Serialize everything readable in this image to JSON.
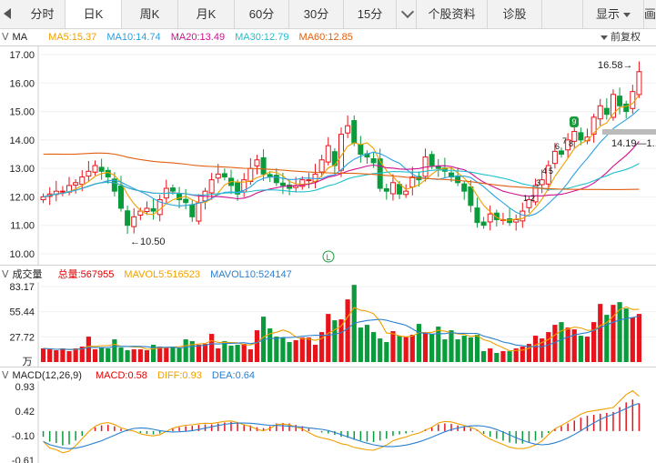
{
  "tabs": [
    {
      "label": "分时",
      "active": false
    },
    {
      "label": "日K",
      "active": true
    },
    {
      "label": "周K",
      "active": false
    },
    {
      "label": "月K",
      "active": false
    },
    {
      "label": "60分",
      "active": false
    },
    {
      "label": "30分",
      "active": false
    },
    {
      "label": "15分",
      "active": false
    }
  ],
  "tab_more_icon": "chevron-down-icon",
  "tab_right": [
    {
      "label": "个股资料"
    },
    {
      "label": "诊股"
    }
  ],
  "display_label": "显示",
  "overflow_label": "画",
  "ma_panel": {
    "name": "MA",
    "values": [
      {
        "label": "MA5:15.37",
        "color": "#f0a000"
      },
      {
        "label": "MA10:14.74",
        "color": "#2aa0e0"
      },
      {
        "label": "MA20:13.49",
        "color": "#d01090"
      },
      {
        "label": "MA30:12.79",
        "color": "#20c0d0"
      },
      {
        "label": "MA60:12.85",
        "color": "#e06010"
      }
    ],
    "adjust_label": "前复权",
    "yticks": [
      "17.00",
      "16.00",
      "15.00",
      "14.00",
      "13.00",
      "12.00",
      "11.00",
      "10.00"
    ],
    "annotations": {
      "high": "16.58→",
      "low": "←10.50",
      "last": "14.19—1...",
      "marker": "L",
      "badge": "9"
    }
  },
  "vol_panel": {
    "name": "成交量",
    "values": [
      {
        "label": "总量:567955",
        "color": "#e00000"
      },
      {
        "label": "MAVOL5:516523",
        "color": "#f0a000"
      },
      {
        "label": "MAVOL10:524147",
        "color": "#2a80d0"
      }
    ],
    "yticks": [
      "83.17",
      "55.44",
      "27.72"
    ],
    "unit": "万"
  },
  "macd_panel": {
    "name": "MACD(12,26,9)",
    "values": [
      {
        "label": "MACD:0.58",
        "color": "#e00000"
      },
      {
        "label": "DIFF:0.93",
        "color": "#f0a000"
      },
      {
        "label": "DEA:0.64",
        "color": "#2a80d0"
      }
    ],
    "yticks": [
      "0.93",
      "0.42",
      "-0.10",
      "-0.61"
    ]
  },
  "chart_data": {
    "type": "candlestick",
    "closes": [
      12.0,
      12.1,
      12.2,
      12.2,
      12.4,
      12.5,
      12.7,
      12.9,
      13.1,
      12.9,
      12.7,
      12.2,
      11.6,
      11.0,
      11.3,
      11.5,
      11.6,
      11.5,
      11.9,
      12.3,
      12.2,
      11.9,
      11.8,
      11.3,
      11.8,
      12.2,
      12.6,
      12.8,
      12.7,
      12.4,
      12.1,
      12.6,
      13.0,
      13.3,
      12.8,
      12.7,
      12.5,
      12.4,
      12.3,
      12.4,
      12.6,
      12.6,
      12.8,
      13.3,
      13.8,
      13.1,
      14.2,
      14.5,
      13.9,
      13.5,
      13.4,
      13.2,
      12.3,
      12.2,
      12.5,
      12.1,
      12.2,
      12.7,
      12.6,
      13.4,
      13.1,
      13.0,
      12.9,
      12.7,
      12.5,
      12.2,
      11.7,
      11.1,
      11.0,
      11.4,
      11.2,
      11.2,
      11.1,
      11.2,
      11.5,
      11.9,
      12.4,
      12.6,
      13.1,
      13.6,
      13.5,
      14.0,
      14.3,
      14.0,
      14.1,
      14.8,
      15.2,
      14.9,
      15.6,
      15.2,
      15.0,
      15.7,
      16.4
    ],
    "volumes": [
      15,
      14,
      13,
      15,
      12,
      15,
      17,
      28,
      14,
      16,
      15,
      25,
      16,
      13,
      14,
      14,
      13,
      19,
      17,
      16,
      17,
      15,
      25,
      23,
      19,
      20,
      31,
      15,
      23,
      18,
      19,
      20,
      14,
      35,
      50,
      37,
      28,
      27,
      22,
      24,
      27,
      27,
      19,
      33,
      53,
      46,
      47,
      69,
      85,
      38,
      41,
      33,
      26,
      22,
      34,
      29,
      28,
      30,
      42,
      33,
      31,
      39,
      25,
      35,
      25,
      29,
      27,
      30,
      12,
      15,
      10,
      12,
      12,
      15,
      17,
      20,
      29,
      26,
      33,
      41,
      44,
      38,
      36,
      29,
      28,
      44,
      64,
      52,
      63,
      66,
      59,
      49,
      53
    ],
    "macd": [
      -0.12,
      -0.22,
      -0.25,
      -0.3,
      -0.28,
      -0.2,
      -0.1,
      0.0,
      0.08,
      0.12,
      0.13,
      0.1,
      0.05,
      0.02,
      0.0,
      -0.04,
      -0.06,
      -0.07,
      -0.05,
      0.0,
      0.05,
      0.08,
      0.1,
      0.11,
      0.13,
      0.14,
      0.14,
      0.16,
      0.18,
      0.19,
      0.17,
      0.14,
      0.12,
      0.08,
      0.06,
      0.1,
      0.16,
      0.17,
      0.16,
      0.13,
      0.1,
      0.05,
      0.0,
      -0.03,
      -0.05,
      -0.08,
      -0.12,
      -0.14,
      -0.18,
      -0.2,
      -0.22,
      -0.23,
      -0.2,
      -0.16,
      -0.1,
      -0.07,
      -0.05,
      -0.02,
      0.0,
      0.04,
      0.08,
      0.14,
      0.16,
      0.15,
      0.12,
      0.09,
      0.06,
      0.02,
      -0.06,
      -0.12,
      -0.16,
      -0.2,
      -0.24,
      -0.26,
      -0.26,
      -0.24,
      -0.2,
      -0.14,
      -0.04,
      0.05,
      0.1,
      0.16,
      0.22,
      0.28,
      0.32,
      0.34,
      0.36,
      0.38,
      0.4,
      0.5,
      0.6,
      0.66,
      0.58
    ],
    "ma_lines": [
      "MA5",
      "MA10",
      "MA20",
      "MA30",
      "MA60"
    ],
    "ylim": [
      9.9,
      17.2
    ]
  }
}
